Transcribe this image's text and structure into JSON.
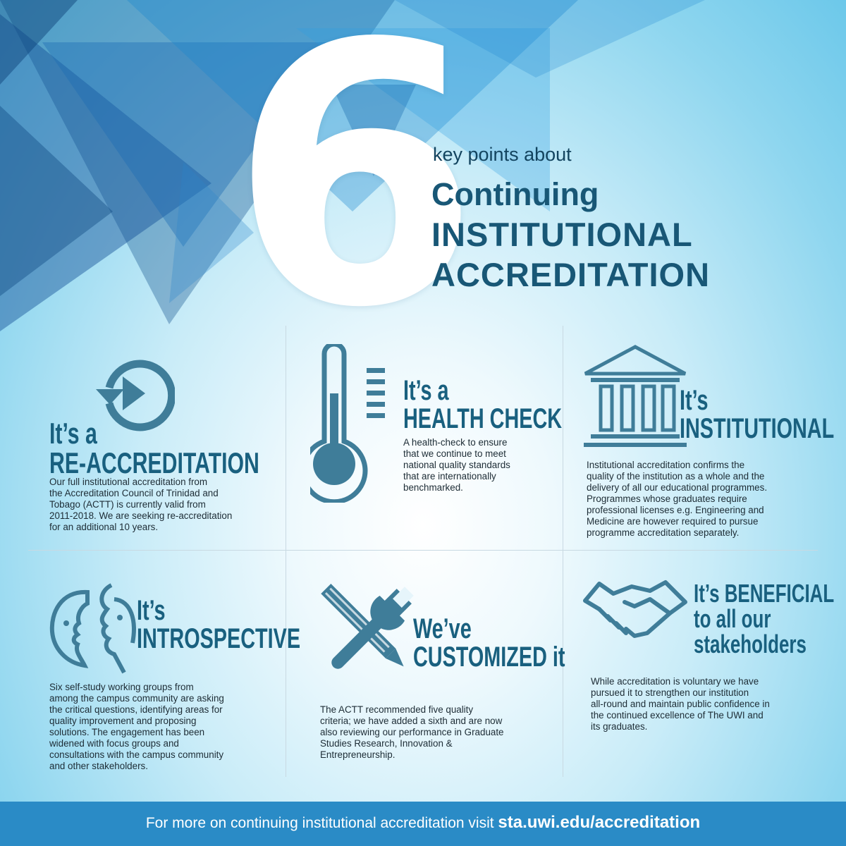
{
  "header": {
    "number": "6",
    "kicker": "key points about",
    "title_line1": "Continuing",
    "title_line2": "INSTITUTIONAL",
    "title_line3": "ACCREDITATION"
  },
  "points": [
    {
      "icon": "replay-icon",
      "heading_line1": "It’s a",
      "heading_line2": "RE-ACCREDITATION",
      "lines": [
        "Our full institutional accreditation from",
        "the Accreditation Council of Trinidad and",
        "Tobago (ACTT) is currently valid from",
        "2011-2018. We are seeking re-accreditation",
        "for an additional 10 years."
      ]
    },
    {
      "icon": "thermometer-icon",
      "heading_line1": "It’s a",
      "heading_line2": "HEALTH CHECK",
      "lines": [
        "A health-check to ensure",
        "that we continue to meet",
        "national quality standards",
        "that are internationally",
        "benchmarked."
      ]
    },
    {
      "icon": "institution-building-icon",
      "heading_line1": "It’s",
      "heading_line2": "INSTITUTIONAL",
      "lines": [
        "Institutional accreditation confirms the",
        "quality of the institution as a whole and the",
        "delivery of all our educational programmes.",
        "Programmes whose graduates require",
        "professional licenses e.g. Engineering and",
        "Medicine are however required to pursue",
        "programme accreditation separately."
      ]
    },
    {
      "icon": "two-faces-icon",
      "heading_line1": "It’s",
      "heading_line2": "INTROSPECTIVE",
      "lines": [
        "Six self-study working groups from",
        "among the campus community are asking",
        "the critical questions, identifying areas for",
        "quality improvement and proposing",
        "solutions. The engagement has been",
        "widened with focus groups and",
        "consultations with the campus community",
        "and other stakeholders."
      ]
    },
    {
      "icon": "wrench-pencil-icon",
      "heading_line1": "We’ve",
      "heading_line2": "CUSTOMIZED it",
      "lines": [
        "The ACTT recommended five quality",
        "criteria; we have added a sixth and are now",
        "also reviewing our performance in Graduate",
        "Studies Research, Innovation &",
        "Entrepreneurship."
      ]
    },
    {
      "icon": "handshake-icon",
      "heading_line1": "It’s BENEFICIAL",
      "heading_line2": "to all our",
      "heading_line3": "stakeholders",
      "lines": [
        "While accreditation is voluntary we have",
        "pursued it to strengthen our institution",
        "all-round and maintain public confidence in",
        "the continued excellence of The UWI and",
        "its graduates."
      ]
    }
  ],
  "footer": {
    "text": "For more on continuing institutional accreditation visit",
    "url": "sta.uwi.edu/accreditation"
  },
  "colors": {
    "title": "#185776",
    "icon": "#3f7d99",
    "footer_bg": "#2a8bc6",
    "divider": "#c8d9e2"
  }
}
